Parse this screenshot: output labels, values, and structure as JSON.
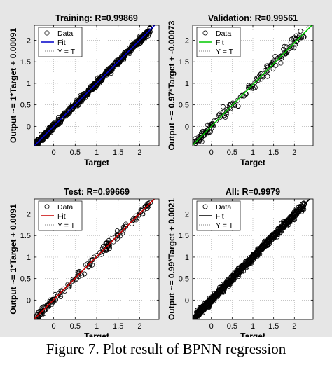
{
  "figure": {
    "caption": "Figure 7. Plot result of BPNN regression"
  },
  "chart_data": [
    {
      "type": "scatter",
      "title": "Training: R=0.99869",
      "xlabel": "Target",
      "ylabel": "Output ~= 1*Target + 0.00091",
      "xlim": [
        -0.45,
        2.45
      ],
      "ylim": [
        -0.45,
        2.35
      ],
      "xticks": [
        0,
        0.5,
        1,
        1.5,
        2
      ],
      "xtick_labels": [
        "0",
        "0.5",
        "1",
        "1.5",
        "2"
      ],
      "yticks": [
        0,
        0.5,
        1,
        1.5,
        2
      ],
      "ytick_labels": [
        "0",
        "0.5",
        "1",
        "1.5",
        "2"
      ],
      "fit": {
        "slope": 1.0,
        "intercept": 0.00091,
        "color": "#0000c8"
      },
      "legend": [
        "Data",
        "Fit",
        "Y = T"
      ],
      "legend_position": "top-left",
      "n_points": 700,
      "spread": 0.035,
      "seed": 11,
      "series": [
        {
          "name": "Data",
          "marker": "o",
          "color": "#000000"
        },
        {
          "name": "Fit",
          "color": "#0000c8"
        },
        {
          "name": "Y = T",
          "style": "dotted",
          "color": "#7f7f7f"
        }
      ]
    },
    {
      "type": "scatter",
      "title": "Validation: R=0.99561",
      "xlabel": "Target",
      "ylabel": "Output ~= 0.97*Target + -0.00073",
      "xlim": [
        -0.45,
        2.45
      ],
      "ylim": [
        -0.45,
        2.35
      ],
      "xticks": [
        0,
        0.5,
        1,
        1.5,
        2
      ],
      "xtick_labels": [
        "0",
        "0.5",
        "1",
        "1.5",
        "2"
      ],
      "yticks": [
        0,
        0.5,
        1,
        1.5,
        2
      ],
      "ytick_labels": [
        "0",
        "0.5",
        "1",
        "1.5",
        "2"
      ],
      "fit": {
        "slope": 0.97,
        "intercept": -0.00073,
        "color": "#00c800"
      },
      "legend": [
        "Data",
        "Fit",
        "Y = T"
      ],
      "legend_position": "top-left",
      "n_points": 160,
      "spread": 0.06,
      "seed": 23,
      "series": [
        {
          "name": "Data",
          "marker": "o",
          "color": "#000000"
        },
        {
          "name": "Fit",
          "color": "#00c800"
        },
        {
          "name": "Y = T",
          "style": "dotted",
          "color": "#7f7f7f"
        }
      ]
    },
    {
      "type": "scatter",
      "title": "Test: R=0.99669",
      "xlabel": "Target",
      "ylabel": "Output ~= 1*Target + 0.0091",
      "xlim": [
        -0.45,
        2.45
      ],
      "ylim": [
        -0.45,
        2.35
      ],
      "xticks": [
        0,
        0.5,
        1,
        1.5,
        2
      ],
      "xtick_labels": [
        "0",
        "0.5",
        "1",
        "1.5",
        "2"
      ],
      "yticks": [
        0,
        0.5,
        1,
        1.5,
        2
      ],
      "ytick_labels": [
        "0",
        "0.5",
        "1",
        "1.5",
        "2"
      ],
      "fit": {
        "slope": 1.0,
        "intercept": 0.0091,
        "color": "#c80000"
      },
      "legend": [
        "Data",
        "Fit",
        "Y = T"
      ],
      "legend_position": "top-left",
      "n_points": 160,
      "spread": 0.05,
      "seed": 37,
      "series": [
        {
          "name": "Data",
          "marker": "o",
          "color": "#000000"
        },
        {
          "name": "Fit",
          "color": "#c80000"
        },
        {
          "name": "Y = T",
          "style": "dotted",
          "color": "#7f7f7f"
        }
      ]
    },
    {
      "type": "scatter",
      "title": "All: R=0.9979",
      "xlabel": "Target",
      "ylabel": "Output ~= 0.99*Target + 0.0021",
      "xlim": [
        -0.45,
        2.45
      ],
      "ylim": [
        -0.45,
        2.35
      ],
      "xticks": [
        0,
        0.5,
        1,
        1.5,
        2
      ],
      "xtick_labels": [
        "0",
        "0.5",
        "1",
        "1.5",
        "2"
      ],
      "yticks": [
        0,
        0.5,
        1,
        1.5,
        2
      ],
      "ytick_labels": [
        "0",
        "0.5",
        "1",
        "1.5",
        "2"
      ],
      "fit": {
        "slope": 0.99,
        "intercept": 0.0021,
        "color": "#000000"
      },
      "legend": [
        "Data",
        "Fit",
        "Y = T"
      ],
      "legend_position": "top-left",
      "n_points": 900,
      "spread": 0.04,
      "seed": 53,
      "series": [
        {
          "name": "Data",
          "marker": "o",
          "color": "#000000"
        },
        {
          "name": "Fit",
          "color": "#000000"
        },
        {
          "name": "Y = T",
          "style": "dotted",
          "color": "#7f7f7f"
        }
      ]
    }
  ]
}
